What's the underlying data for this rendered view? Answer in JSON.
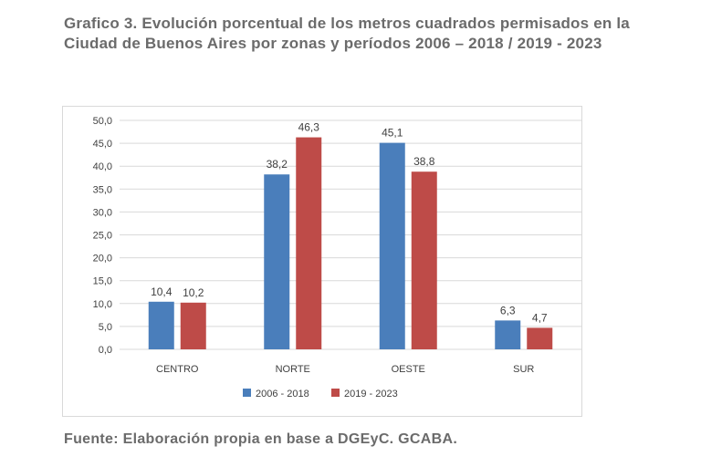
{
  "header": {
    "title_line1": "Grafico 3. Evolución porcentual de los metros cuadrados permisados en la",
    "title_line2": "Ciudad de Buenos Aires por zonas y períodos 2006 – 2018 / 2019 - 2023"
  },
  "footer": {
    "source": "Fuente: Elaboración propia en base a DGEyC. GCABA."
  },
  "colors": {
    "series1": "#4a7ebb",
    "series2": "#be4b48",
    "grid": "#d9d9d9",
    "text": "#404040"
  },
  "chart_data": {
    "type": "bar",
    "title": "Grafico 3. Evolución porcentual de los metros cuadrados permisados en la Ciudad de Buenos Aires por zonas y períodos 2006 – 2018 / 2019 - 2023",
    "categories": [
      "CENTRO",
      "NORTE",
      "OESTE",
      "SUR"
    ],
    "series": [
      {
        "name": "2006 - 2018",
        "values": [
          10.4,
          38.2,
          45.1,
          6.3
        ],
        "labels": [
          "10,4",
          "38,2",
          "45,1",
          "6,3"
        ]
      },
      {
        "name": "2019 - 2023",
        "values": [
          10.2,
          46.3,
          38.8,
          4.7
        ],
        "labels": [
          "10,2",
          "46,3",
          "38,8",
          "4,7"
        ]
      }
    ],
    "yticks": [
      0,
      5,
      10,
      15,
      20,
      25,
      30,
      35,
      40,
      45,
      50
    ],
    "ytick_labels": [
      "0,0",
      "5,0",
      "10,0",
      "15,0",
      "20,0",
      "25,0",
      "30,0",
      "35,0",
      "40,0",
      "45,0",
      "50,0"
    ],
    "ylim": [
      0,
      50
    ],
    "xlabel": "",
    "ylabel": "",
    "grid": true,
    "legend_position": "bottom"
  }
}
